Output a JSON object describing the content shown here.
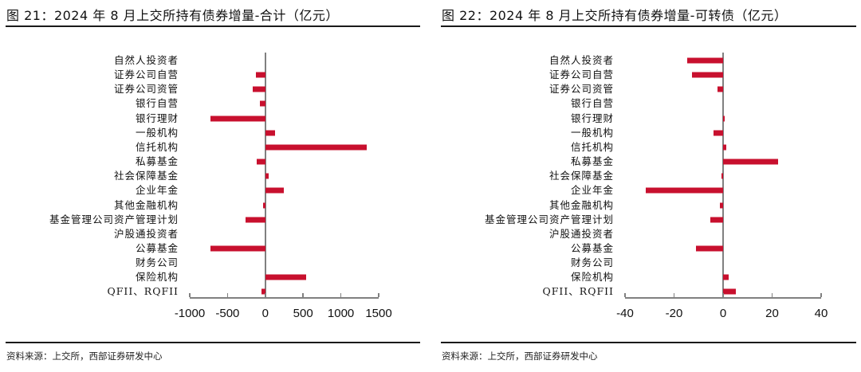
{
  "charts": [
    {
      "title": "图 21：2024 年 8 月上交所持有债券增量-合计（亿元）",
      "source": "资料来源：上交所，西部证券研发中心"
    },
    {
      "title": "图 22：2024 年 8 月上交所持有债券增量-可转债（亿元）",
      "source": "资料来源：上交所，西部证券研发中心"
    }
  ],
  "style": {
    "bar_color": "#C8102E",
    "axis_color": "#808080",
    "rule_color": "#1a1a1a"
  },
  "chart_data": [
    {
      "type": "bar",
      "orientation": "horizontal",
      "title": "图 21：2024 年 8 月上交所持有债券增量-合计（亿元）",
      "xlabel": "",
      "ylabel": "",
      "unit": "亿元",
      "categories": [
        "自然人投资者",
        "证券公司自营",
        "证券公司资管",
        "银行自营",
        "银行理财",
        "一般机构",
        "信托机构",
        "私募基金",
        "社会保障基金",
        "企业年金",
        "其他金融机构",
        "基金管理公司资产管理计划",
        "沪股通投资者",
        "公募基金",
        "财务公司",
        "保险机构",
        "QFII、RQFII"
      ],
      "values": [
        0,
        -120,
        -170,
        -75,
        -730,
        125,
        1345,
        -115,
        45,
        250,
        -30,
        -265,
        0,
        -725,
        0,
        540,
        -50
      ],
      "xlim": [
        -1000,
        1500
      ],
      "xticks": [
        -1000,
        -500,
        0,
        500,
        1000,
        1500
      ],
      "grid": false,
      "legend": null
    },
    {
      "type": "bar",
      "orientation": "horizontal",
      "title": "图 22：2024 年 8 月上交所持有债券增量-可转债（亿元）",
      "xlabel": "",
      "ylabel": "",
      "unit": "亿元",
      "categories": [
        "自然人投资者",
        "证券公司自营",
        "证券公司资管",
        "银行自营",
        "银行理财",
        "一般机构",
        "信托机构",
        "私募基金",
        "社会保障基金",
        "企业年金",
        "其他金融机构",
        "基金管理公司资产管理计划",
        "沪股通投资者",
        "公募基金",
        "财务公司",
        "保险机构",
        "QFII、RQFII"
      ],
      "values": [
        -14.6,
        -12.7,
        -2.3,
        0,
        0.8,
        -4.0,
        1.2,
        22.5,
        -0.8,
        -31.6,
        -1.3,
        -5.2,
        0,
        -11.0,
        0,
        2.3,
        5.2
      ],
      "xlim": [
        -40,
        40
      ],
      "xticks": [
        -40,
        -20,
        0,
        20,
        40
      ],
      "grid": false,
      "legend": null
    }
  ]
}
